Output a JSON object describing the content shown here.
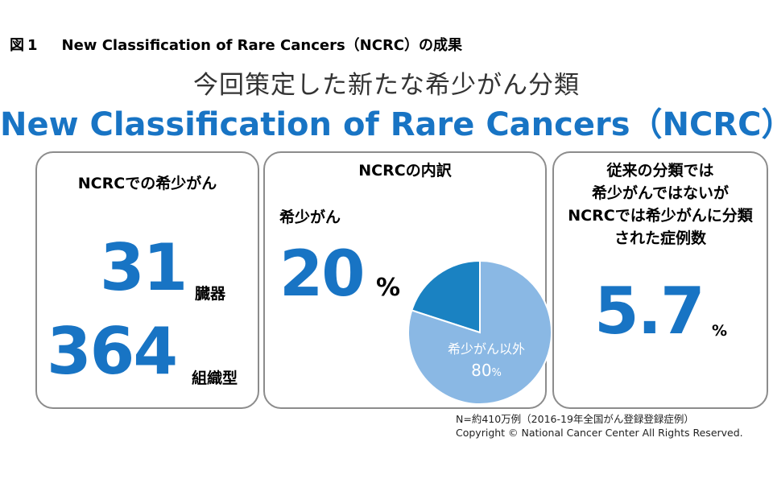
{
  "figure_label": {
    "prefix": "図",
    "number": "1",
    "text": "New Classification of Rare Cancers（NCRC）の成果"
  },
  "subtitle": "今回策定した新たな希少がん分類",
  "title": "New Classification of Rare Cancers（NCRC）",
  "panel1": {
    "title": "NCRCでの希少がん",
    "stat1": {
      "value": "31",
      "unit": "臓器"
    },
    "stat2": {
      "value": "364",
      "unit": "組織型"
    }
  },
  "panel2": {
    "title": "NCRCの内訳",
    "label": "希少がん",
    "value": "20",
    "unit": "%"
  },
  "panel3": {
    "title_lines": [
      "従来の分類では",
      "希少がんではないが",
      "NCRCでは希少がんに分類",
      "された症例数"
    ],
    "value": "5.7",
    "unit": "%"
  },
  "chart_data": {
    "type": "pie",
    "slices": [
      {
        "label": "希少がん",
        "value": 20,
        "color": "#1a82c2"
      },
      {
        "label": "希少がん以外",
        "value": 80,
        "value_text": "80",
        "unit": "%",
        "color": "#8ab8e4"
      }
    ]
  },
  "footnote": {
    "line1": "N=約410万例（2016-19年全国がん登録登録症例）",
    "line2": "Copyright © National Cancer Center All Rights Reserved."
  }
}
